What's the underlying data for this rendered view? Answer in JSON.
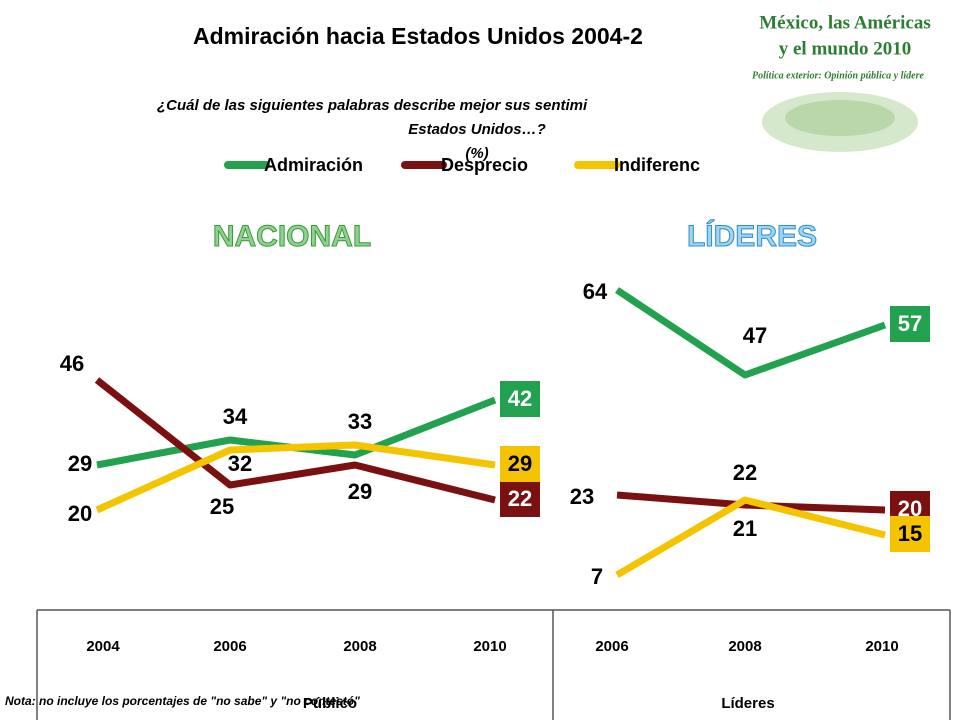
{
  "title": "Admiración hacia Estados Unidos 2004-2",
  "subtitle": "¿Cuál de las siguientes palabras describe mejor sus sentimi",
  "subtitle2": "Estados Unidos…?",
  "unit": "(%)",
  "logo": {
    "line1": "México, las Américas",
    "line2": "y el mundo 2010",
    "line3": "Política exterior: Opinión pública y lídere"
  },
  "note": "Nota: no incluye los porcentajes de \"no sabe\" y \"no contestó\"",
  "chart_data": [
    {
      "type": "line",
      "title": "NACIONAL",
      "group_label": "Público",
      "categories": [
        "2004",
        "2006",
        "2008",
        "2010"
      ],
      "series": [
        {
          "name": "Admiración",
          "color": "#22a24f",
          "values": [
            29,
            34,
            31,
            42
          ],
          "value_labels": [
            29,
            34,
            null,
            42
          ]
        },
        {
          "name": "Desprecio",
          "color": "#7a1010",
          "values": [
            46,
            25,
            29,
            22
          ]
        },
        {
          "name": "Indiferenc",
          "color": "#f5c400",
          "values": [
            20,
            32,
            33,
            29
          ]
        }
      ]
    },
    {
      "type": "line",
      "title": "LÍDERES",
      "group_label": "Líderes",
      "categories": [
        "2006",
        "2008",
        "2010"
      ],
      "series": [
        {
          "color": "#22a24f",
          "values": [
            64,
            47,
            57
          ]
        },
        {
          "color": "#7a1010",
          "values": [
            23,
            21,
            20
          ]
        },
        {
          "color": "#f5c400",
          "values": [
            7,
            22,
            15
          ]
        }
      ]
    }
  ]
}
